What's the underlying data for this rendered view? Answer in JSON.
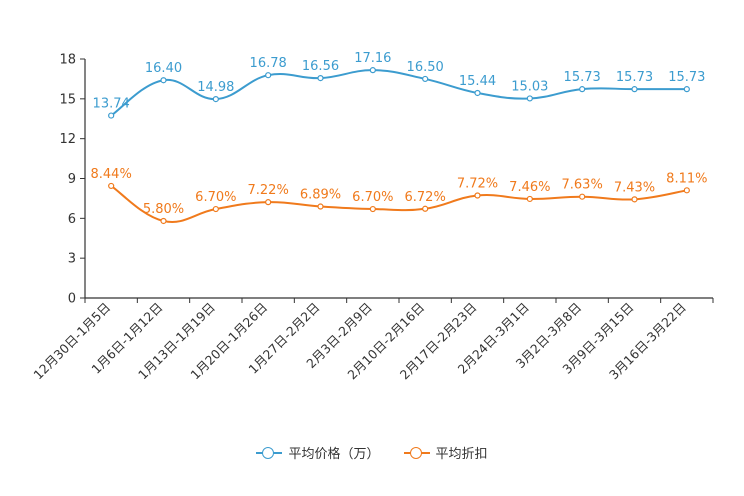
{
  "chart_data": {
    "type": "line",
    "title": "",
    "xlabel": "",
    "ylabel": "",
    "ylim": [
      0,
      18
    ],
    "yticks": [
      0,
      3,
      6,
      9,
      12,
      15,
      18
    ],
    "categories": [
      "12月30日-1月5日",
      "1月6日-1月12日",
      "1月13日-1月19日",
      "1月20日-1月26日",
      "1月27日-2月2日",
      "2月3日-2月9日",
      "2月10日-2月16日",
      "2月17日-2月23日",
      "2月24日-3月1日",
      "3月2日-3月8日",
      "3月9日-3月15日",
      "3月16日-3月22日"
    ],
    "series": [
      {
        "name": "平均价格（万）",
        "color": "#3c9ccf",
        "values": [
          13.74,
          16.4,
          14.98,
          16.78,
          16.56,
          17.16,
          16.5,
          15.44,
          15.03,
          15.73,
          15.73,
          15.73
        ],
        "labels": [
          "13.74",
          "16.40",
          "14.98",
          "16.78",
          "16.56",
          "17.16",
          "16.50",
          "15.44",
          "15.03",
          "15.73",
          "15.73",
          "15.73"
        ]
      },
      {
        "name": "平均折扣",
        "color": "#f07a1c",
        "values": [
          8.44,
          5.8,
          6.7,
          7.22,
          6.89,
          6.7,
          6.72,
          7.72,
          7.46,
          7.63,
          7.43,
          8.11
        ],
        "labels": [
          "8.44%",
          "5.80%",
          "6.70%",
          "7.22%",
          "6.89%",
          "6.70%",
          "6.72%",
          "7.72%",
          "7.46%",
          "7.63%",
          "7.43%",
          "8.11%"
        ]
      }
    ],
    "legend_position": "bottom-center"
  }
}
